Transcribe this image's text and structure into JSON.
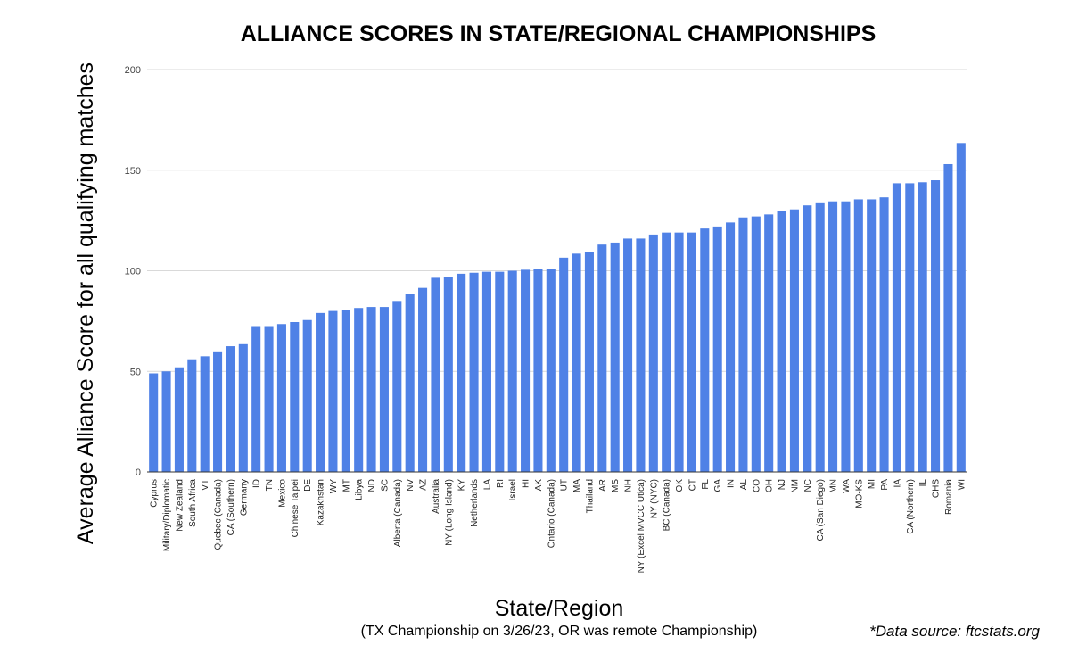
{
  "chart_data": {
    "type": "bar",
    "title": "ALLIANCE SCORES IN STATE/REGIONAL  CHAMPIONSHIPS",
    "xlabel": "State/Region",
    "ylabel": "Average Alliance Score for all qualifying matches",
    "ylim": [
      0,
      200
    ],
    "yticks": [
      0,
      50,
      100,
      150,
      200
    ],
    "grid": true,
    "bar_color": "#4f81e6",
    "categories": [
      "Cyprus",
      "Military/Diplomatic",
      "New Zealand",
      "South Africa",
      "VT",
      "Quebec (Canada)",
      "CA (Southern)",
      "Germany",
      "ID",
      "TN",
      "Mexico",
      "Chinese Taipei",
      "DE",
      "Kazakhstan",
      "WY",
      "MT",
      "Libya",
      "ND",
      "SC",
      "Alberta (Canada)",
      "NV",
      "AZ",
      "Australia",
      "NY (Long Island)",
      "KY",
      "Netherlands",
      "LA",
      "RI",
      "Israel",
      "HI",
      "AK",
      "Ontario (Canada)",
      "UT",
      "MA",
      "Thailand",
      "AR",
      "MS",
      "NH",
      "NY (Excel MVCC Utica)",
      "NY (NYC)",
      "BC (Canada)",
      "OK",
      "CT",
      "FL",
      "GA",
      "IN",
      "AL",
      "CO",
      "OH",
      "NJ",
      "NM",
      "NC",
      "CA (San Diego)",
      "MN",
      "WA",
      "MO-KS",
      "MI",
      "PA",
      "IA",
      "CA (Northern)",
      "IL",
      "CHS",
      "Romania",
      "WI"
    ],
    "values": [
      49,
      50,
      52,
      56,
      57.5,
      59.5,
      62.5,
      63.5,
      72.5,
      72.5,
      73.5,
      74.5,
      75.5,
      79,
      80,
      80.5,
      81.5,
      82,
      82,
      85,
      88.5,
      91.5,
      96.5,
      97,
      98.5,
      99,
      99.5,
      99.5,
      100,
      100.5,
      101,
      101,
      106.5,
      108.5,
      109.5,
      113,
      114,
      116,
      116,
      118,
      119,
      119,
      119,
      121,
      122,
      124,
      126.5,
      127,
      128,
      129.5,
      130.5,
      132.5,
      134,
      134.5,
      134.5,
      135.5,
      135.5,
      136.5,
      143.5,
      143.5,
      144,
      145,
      153,
      163.5
    ],
    "note": "(TX Championship on 3/26/23, OR was remote Championship)",
    "source": "*Data source: ftcstats.org"
  }
}
